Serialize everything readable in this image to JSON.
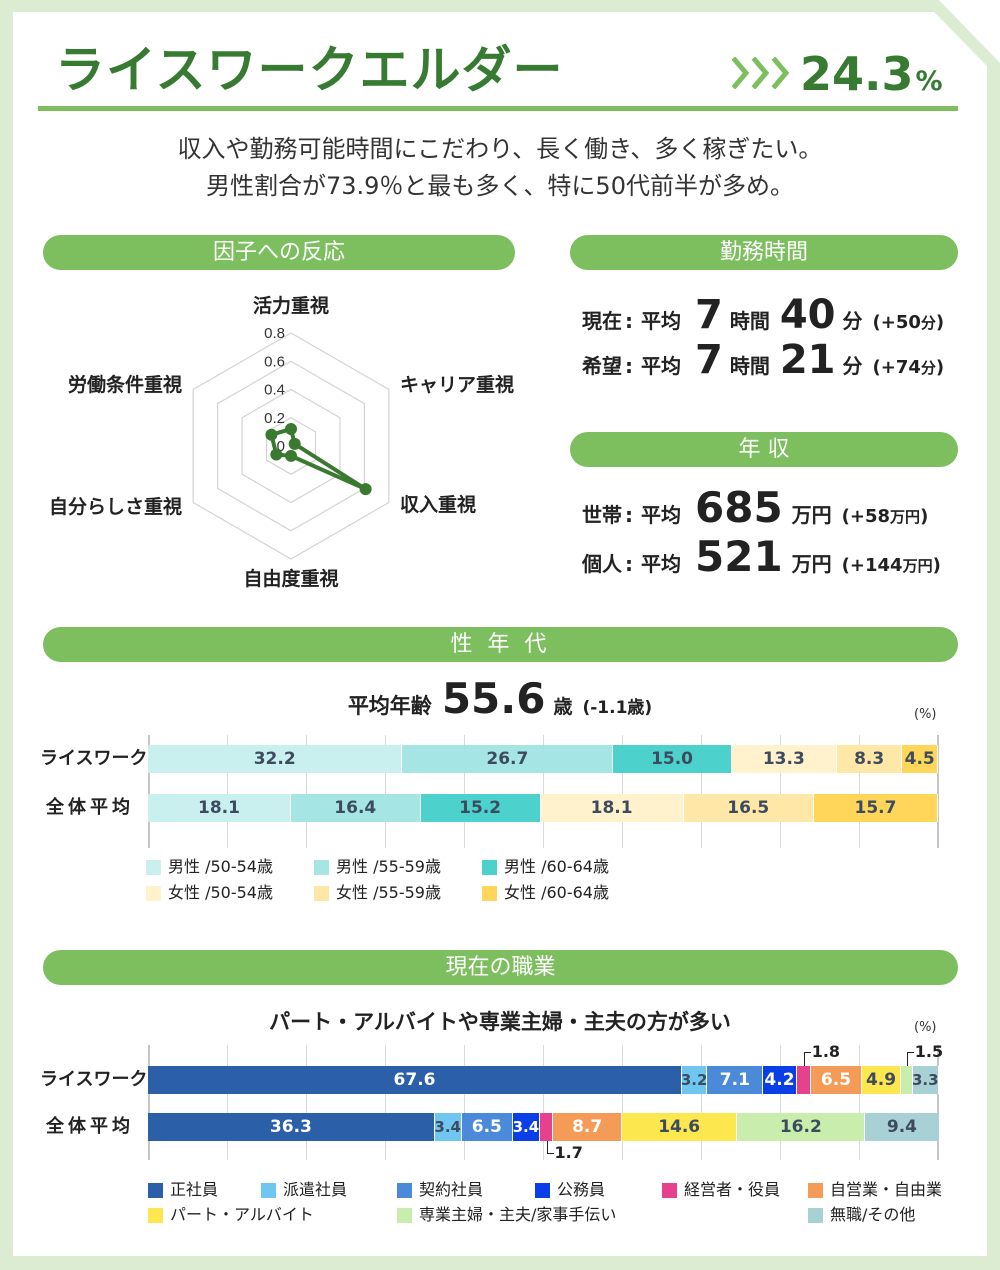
{
  "colors": {
    "accent": "#7dbf5f",
    "title": "#377a32",
    "frame": "#dcecd3",
    "text": "#222222",
    "bar_label_dark": "#3d4b5f",
    "bar_label_light": "#ffffff"
  },
  "header": {
    "title": "ライスワークエルダー",
    "chevron_icon": "triple-chevron-right",
    "share_value": "24.3",
    "share_unit": "%"
  },
  "description": {
    "line1": "収入や勤務可能時間にこだわり、長く働き、多く稼ぎたい。",
    "line2": "男性割合が73.9％と最も多く、特に50代前半が多め。"
  },
  "factors": {
    "title": "因子への反応"
  },
  "work_hours": {
    "title": "勤務時間",
    "rows": [
      {
        "label": "現在",
        "colon": ":",
        "avg": "平均",
        "hours": "7",
        "hours_unit": "時間",
        "minutes": "40",
        "minutes_unit": "分",
        "diff_open": "(+",
        "diff_value": "50",
        "diff_unit": "分",
        "diff_close": ")"
      },
      {
        "label": "希望",
        "colon": ":",
        "avg": "平均",
        "hours": "7",
        "hours_unit": "時間",
        "minutes": "21",
        "minutes_unit": "分",
        "diff_open": "(+",
        "diff_value": "74",
        "diff_unit": "分",
        "diff_close": ")"
      }
    ]
  },
  "income": {
    "title": "年 収",
    "rows": [
      {
        "label": "世帯",
        "colon": ":",
        "avg": "平均",
        "value": "685",
        "unit": "万円",
        "diff_open": "(+",
        "diff_value": "58",
        "diff_unit": "万円",
        "diff_close": ")"
      },
      {
        "label": "個人",
        "colon": ":",
        "avg": "平均",
        "value": "521",
        "unit": "万円",
        "diff_open": "(+",
        "diff_value": "144",
        "diff_unit": "万円",
        "diff_close": ")"
      }
    ]
  },
  "sex_age": {
    "title": "性 年 代",
    "avg_age_label": "平均年齢",
    "avg_age_value": "55.6",
    "avg_age_unit": "歳",
    "avg_age_diff": "(-1.1歳)",
    "unit_label": "(%)"
  },
  "occupation": {
    "title": "現在の職業",
    "subtitle": "パート・アルバイトや専業主婦・主夫の方が多い",
    "unit_label": "(%)"
  },
  "chart_data": [
    {
      "type": "radar",
      "title": "因子への反応",
      "axes": [
        "活力重視",
        "キャリア重視",
        "収入重視",
        "自由度重視",
        "自分らしさ重視",
        "労働条件重視"
      ],
      "values": [
        0.12,
        0.03,
        0.61,
        0.07,
        0.12,
        0.16
      ],
      "rlim": [
        0,
        0.8
      ],
      "grid_levels": [
        0.2,
        0.4,
        0.6,
        0.8
      ],
      "tick_labels": [
        "0.8",
        "0.6",
        "0.4",
        "0.2",
        "0"
      ],
      "color": "#3a7a30",
      "legend": "none"
    },
    {
      "type": "bar",
      "stacked": true,
      "orientation": "horizontal",
      "title": "性年代",
      "xlabel": "",
      "ylabel": "",
      "unit": "(%)",
      "xlim": [
        0,
        100
      ],
      "grid": true,
      "categories": [
        "ライスワーク",
        "全体平均"
      ],
      "series": [
        {
          "name": "男性 /50-54歳",
          "values": [
            32.2,
            18.1
          ],
          "color": "#c9f0ef",
          "label_color": "#3d4b5f"
        },
        {
          "name": "男性 /55-59歳",
          "values": [
            26.7,
            16.4
          ],
          "color": "#a5e6e4",
          "label_color": "#3d4b5f"
        },
        {
          "name": "男性 /60-64歳",
          "values": [
            15.0,
            15.2
          ],
          "color": "#4dd1cd",
          "label_color": "#3d4b5f"
        },
        {
          "name": "女性 /50-54歳",
          "values": [
            13.3,
            18.1
          ],
          "color": "#fff2cc",
          "label_color": "#3d4b5f"
        },
        {
          "name": "女性 /55-59歳",
          "values": [
            8.3,
            16.5
          ],
          "color": "#ffe7a8",
          "label_color": "#3d4b5f"
        },
        {
          "name": "女性 /60-64歳",
          "values": [
            4.5,
            15.7
          ],
          "color": "#ffd65a",
          "label_color": "#3d4b5f"
        }
      ],
      "legend_position": "bottom"
    },
    {
      "type": "bar",
      "stacked": true,
      "orientation": "horizontal",
      "title": "現在の職業",
      "subtitle": "パート・アルバイトや専業主婦・主夫の方が多い",
      "xlabel": "",
      "ylabel": "",
      "unit": "(%)",
      "xlim": [
        0,
        100
      ],
      "grid": true,
      "categories": [
        "ライスワーク",
        "全体平均"
      ],
      "series": [
        {
          "name": "正社員",
          "values": [
            67.6,
            36.3
          ],
          "color": "#2b5fa8",
          "label_color": "#ffffff"
        },
        {
          "name": "派遣社員",
          "values": [
            3.2,
            3.4
          ],
          "color": "#6ec6f1",
          "label_color": "#3d4b5f"
        },
        {
          "name": "契約社員",
          "values": [
            7.1,
            6.5
          ],
          "color": "#4a8ad9",
          "label_color": "#ffffff"
        },
        {
          "name": "公務員",
          "values": [
            4.2,
            3.4
          ],
          "color": "#0a3ee6",
          "label_color": "#ffffff"
        },
        {
          "name": "経営者・役員",
          "values": [
            1.8,
            1.7
          ],
          "color": "#e6418c",
          "label_color": "#222222",
          "label_modes": [
            "callout-above",
            "callout-below"
          ]
        },
        {
          "name": "自営業・自由業",
          "values": [
            6.5,
            8.7
          ],
          "color": "#f59b58",
          "label_color": "#ffffff"
        },
        {
          "name": "パート・アルバイト",
          "values": [
            4.9,
            14.6
          ],
          "color": "#fde74e",
          "label_color": "#3d4b5f"
        },
        {
          "name": "専業主婦・主夫/家事手伝い",
          "values": [
            1.5,
            16.2
          ],
          "color": "#c8edac",
          "label_color": "#3d4b5f",
          "label_modes": [
            "callout-above",
            "inside"
          ]
        },
        {
          "name": "無職/その他",
          "values": [
            3.3,
            9.4
          ],
          "color": "#a8d1d6",
          "label_color": "#3d4b5f"
        }
      ],
      "legend_position": "bottom"
    }
  ]
}
